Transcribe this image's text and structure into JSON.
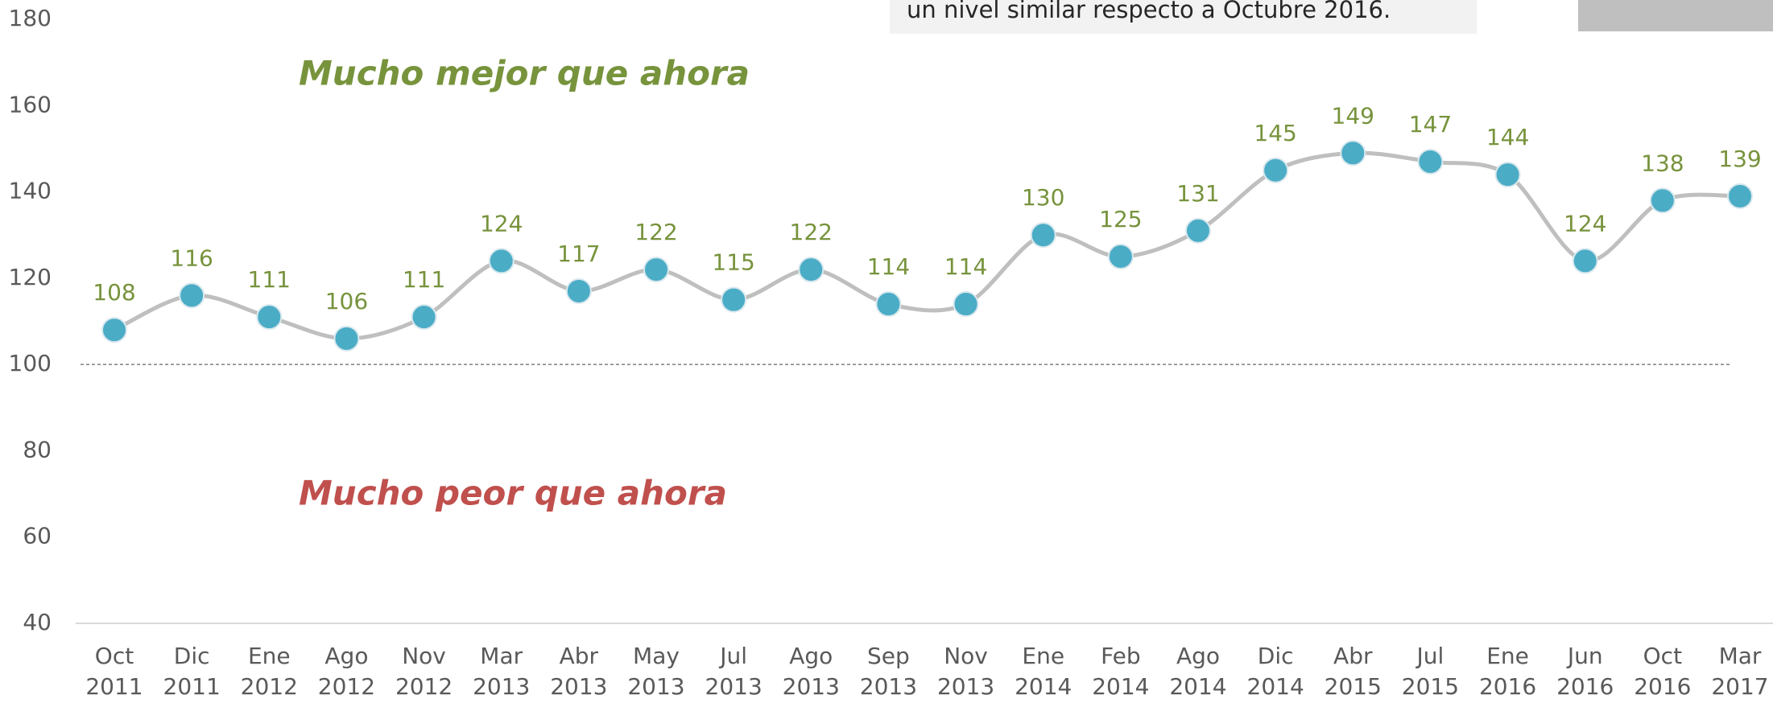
{
  "chart_data": {
    "type": "line",
    "note_text": "un nivel similar respecto a Octubre 2016.",
    "annotations": [
      "Mucho mejor que ahora",
      "Mucho peor que ahora"
    ],
    "categories": [
      "Oct 2011",
      "Dic 2011",
      "Ene 2012",
      "Ago 2012",
      "Nov 2012",
      "Mar 2013",
      "Abr 2013",
      "May 2013",
      "Jul 2013",
      "Ago 2013",
      "Sep 2013",
      "Nov 2013",
      "Ene 2014",
      "Feb 2014",
      "Ago 2014",
      "Dic 2014",
      "Abr 2015",
      "Jul 2015",
      "Ene 2016",
      "Jun 2016",
      "Oct 2016",
      "Mar 2017"
    ],
    "series": [
      {
        "color": "#4bacc6",
        "values": [
          108,
          116,
          111,
          106,
          111,
          124,
          117,
          122,
          115,
          122,
          114,
          114,
          130,
          125,
          131,
          145,
          149,
          147,
          144,
          124,
          138,
          139
        ]
      }
    ],
    "ylim": [
      40,
      180
    ],
    "yticks": [
      40,
      60,
      80,
      100,
      120,
      140,
      160,
      180
    ],
    "reference_line": 100,
    "grid": false
  }
}
